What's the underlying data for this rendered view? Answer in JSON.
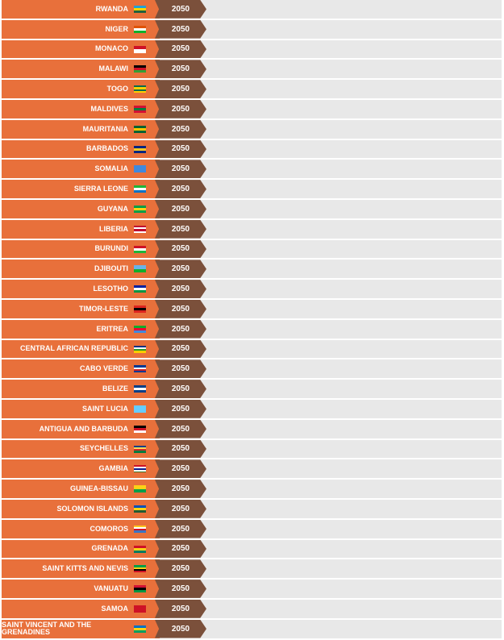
{
  "rows": [
    {
      "country": "RWANDA",
      "year": 2050
    },
    {
      "country": "NIGER",
      "year": 2050
    },
    {
      "country": "MONACO",
      "year": 2050
    },
    {
      "country": "MALAWI",
      "year": 2050
    },
    {
      "country": "TOGO",
      "year": 2050
    },
    {
      "country": "MALDIVES",
      "year": 2050
    },
    {
      "country": "MAURITANIA",
      "year": 2050
    },
    {
      "country": "BARBADOS",
      "year": 2050
    },
    {
      "country": "SOMALIA",
      "year": 2050
    },
    {
      "country": "SIERRA LEONE",
      "year": 2050
    },
    {
      "country": "GUYANA",
      "year": 2050
    },
    {
      "country": "LIBERIA",
      "year": 2050
    },
    {
      "country": "BURUNDI",
      "year": 2050
    },
    {
      "country": "DJIBOUTI",
      "year": 2050
    },
    {
      "country": "LESOTHO",
      "year": 2050
    },
    {
      "country": "TIMOR-LESTE",
      "year": 2050
    },
    {
      "country": "ERITREA",
      "year": 2050
    },
    {
      "country": "CENTRAL AFRICAN REPUBLIC",
      "year": 2050
    },
    {
      "country": "CABO VERDE",
      "year": 2050
    },
    {
      "country": "BELIZE",
      "year": 2050
    },
    {
      "country": "SAINT LUCIA",
      "year": 2050
    },
    {
      "country": "ANTIGUA AND BARBUDA",
      "year": 2050
    },
    {
      "country": "SEYCHELLES",
      "year": 2050
    },
    {
      "country": "GAMBIA",
      "year": 2050
    },
    {
      "country": "GUINEA-BISSAU",
      "year": 2050
    },
    {
      "country": "SOLOMON ISLANDS",
      "year": 2050
    },
    {
      "country": "COMOROS",
      "year": 2050
    },
    {
      "country": "GRENADA",
      "year": 2050
    },
    {
      "country": "SAINT KITTS AND NEVIS",
      "year": 2050
    },
    {
      "country": "VANUATU",
      "year": 2050
    },
    {
      "country": "SAMOA",
      "year": 2050
    },
    {
      "country": "SAINT VINCENT AND THE GRENADINES",
      "year": 2050
    }
  ]
}
